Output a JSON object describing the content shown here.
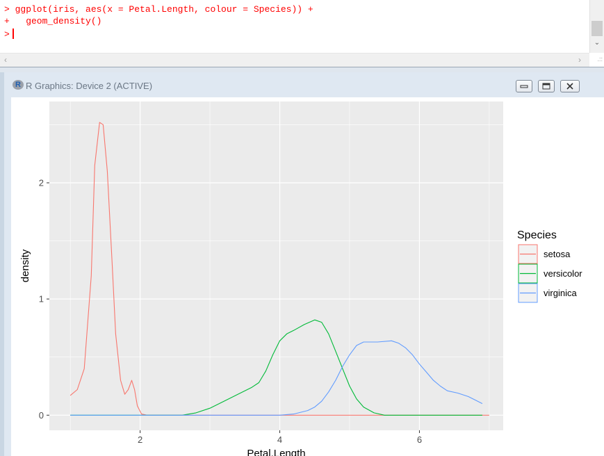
{
  "console": {
    "lines": [
      "> ggplot(iris, aes(x = Petal.Length, colour = Species)) +",
      "+   geom_density()",
      ">"
    ],
    "text_color": "#ff0000"
  },
  "graphics_window": {
    "title": "R Graphics: Device 2 (ACTIVE)",
    "controls": [
      "minimize-icon",
      "maximize-icon",
      "close-icon"
    ]
  },
  "chart_data": {
    "type": "line",
    "title": "",
    "xlabel": "Petal.Length",
    "ylabel": "density",
    "xlim": [
      0.7,
      7.2
    ],
    "ylim": [
      -0.13,
      2.7
    ],
    "x_ticks": [
      2,
      4,
      6
    ],
    "y_ticks": [
      0,
      1,
      2
    ],
    "grid": true,
    "legend": {
      "title": "Species",
      "placement": "right"
    },
    "series": [
      {
        "name": "setosa",
        "color": "#F8766D",
        "points": [
          [
            1.0,
            0.17
          ],
          [
            1.1,
            0.22
          ],
          [
            1.2,
            0.4
          ],
          [
            1.3,
            1.2
          ],
          [
            1.35,
            2.15
          ],
          [
            1.42,
            2.52
          ],
          [
            1.47,
            2.5
          ],
          [
            1.53,
            2.1
          ],
          [
            1.6,
            1.3
          ],
          [
            1.65,
            0.7
          ],
          [
            1.72,
            0.3
          ],
          [
            1.78,
            0.18
          ],
          [
            1.83,
            0.22
          ],
          [
            1.88,
            0.3
          ],
          [
            1.92,
            0.22
          ],
          [
            1.96,
            0.08
          ],
          [
            2.02,
            0.01
          ],
          [
            2.1,
            0.0
          ],
          [
            7.0,
            0.0
          ]
        ]
      },
      {
        "name": "versicolor",
        "color": "#00BA38",
        "points": [
          [
            1.0,
            0.0
          ],
          [
            2.6,
            0.0
          ],
          [
            2.8,
            0.02
          ],
          [
            3.0,
            0.06
          ],
          [
            3.2,
            0.12
          ],
          [
            3.4,
            0.18
          ],
          [
            3.6,
            0.24
          ],
          [
            3.7,
            0.28
          ],
          [
            3.8,
            0.38
          ],
          [
            3.9,
            0.52
          ],
          [
            4.0,
            0.64
          ],
          [
            4.1,
            0.7
          ],
          [
            4.2,
            0.73
          ],
          [
            4.35,
            0.78
          ],
          [
            4.5,
            0.82
          ],
          [
            4.6,
            0.8
          ],
          [
            4.7,
            0.7
          ],
          [
            4.8,
            0.55
          ],
          [
            4.9,
            0.4
          ],
          [
            5.0,
            0.25
          ],
          [
            5.1,
            0.14
          ],
          [
            5.2,
            0.07
          ],
          [
            5.35,
            0.02
          ],
          [
            5.5,
            0.0
          ],
          [
            6.9,
            0.0
          ]
        ]
      },
      {
        "name": "virginica",
        "color": "#619CFF",
        "points": [
          [
            1.0,
            0.0
          ],
          [
            4.0,
            0.0
          ],
          [
            4.2,
            0.01
          ],
          [
            4.4,
            0.04
          ],
          [
            4.5,
            0.07
          ],
          [
            4.6,
            0.12
          ],
          [
            4.7,
            0.2
          ],
          [
            4.8,
            0.3
          ],
          [
            4.9,
            0.42
          ],
          [
            5.0,
            0.52
          ],
          [
            5.1,
            0.6
          ],
          [
            5.2,
            0.63
          ],
          [
            5.4,
            0.63
          ],
          [
            5.6,
            0.64
          ],
          [
            5.7,
            0.62
          ],
          [
            5.8,
            0.58
          ],
          [
            5.9,
            0.52
          ],
          [
            6.0,
            0.44
          ],
          [
            6.1,
            0.37
          ],
          [
            6.2,
            0.3
          ],
          [
            6.3,
            0.25
          ],
          [
            6.4,
            0.21
          ],
          [
            6.55,
            0.19
          ],
          [
            6.7,
            0.16
          ],
          [
            6.8,
            0.13
          ],
          [
            6.9,
            0.1
          ]
        ]
      }
    ]
  }
}
